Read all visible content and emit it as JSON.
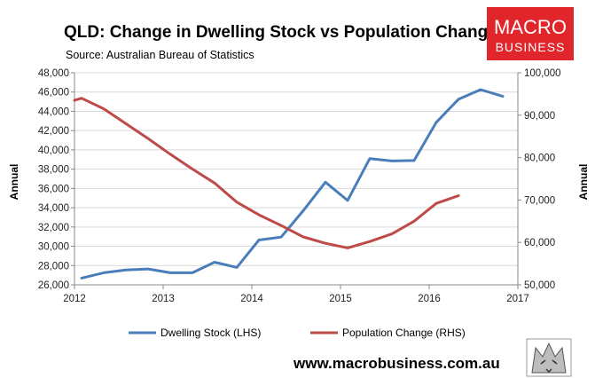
{
  "chart_data": {
    "type": "line",
    "title": "QLD: Change in Dwelling Stock vs Population Change",
    "subtitle": "Source: Australian Bureau of Statistics",
    "ylabel_left": "Annual",
    "ylabel_right": "Annual",
    "x_ticks": [
      2012,
      2013,
      2014,
      2015,
      2016,
      2017
    ],
    "xlim": [
      2012,
      2017
    ],
    "ylim_left": [
      26000,
      48000
    ],
    "ylim_right": [
      50000,
      100000
    ],
    "y_ticks_left": [
      "26,000",
      "28,000",
      "30,000",
      "32,000",
      "34,000",
      "36,000",
      "38,000",
      "40,000",
      "42,000",
      "44,000",
      "46,000",
      "48,000"
    ],
    "y_ticks_right": [
      "50,000",
      "60,000",
      "70,000",
      "80,000",
      "90,000",
      "100,000"
    ],
    "legend_position": "bottom",
    "grid": "horizontal",
    "series": [
      {
        "name": "Dwelling Stock (LHS)",
        "axis": "left",
        "color": "#4a7ebb",
        "x": [
          2012.08,
          2012.33,
          2012.58,
          2012.83,
          2013.08,
          2013.33,
          2013.58,
          2013.83,
          2014.08,
          2014.33,
          2014.58,
          2014.83,
          2015.08,
          2015.33,
          2015.58,
          2015.83,
          2016.08,
          2016.33,
          2016.58,
          2016.83
        ],
        "y": [
          26700,
          27250,
          27550,
          27650,
          27250,
          27250,
          28350,
          27800,
          30650,
          30950,
          33700,
          36650,
          34750,
          39100,
          38850,
          38900,
          42850,
          45250,
          46250,
          45550
        ]
      },
      {
        "name": "Population Change (RHS)",
        "axis": "right",
        "color": "#be4b48",
        "x": [
          2012.0,
          2012.08,
          2012.33,
          2012.58,
          2012.83,
          2013.08,
          2013.33,
          2013.58,
          2013.83,
          2014.08,
          2014.33,
          2014.58,
          2014.83,
          2015.08,
          2015.33,
          2015.58,
          2015.83,
          2016.08,
          2016.33
        ],
        "y": [
          93500,
          94000,
          91500,
          88000,
          84500,
          80800,
          77300,
          74000,
          69500,
          66500,
          64000,
          61300,
          59800,
          58700,
          60200,
          62000,
          65000,
          69200,
          71000
        ]
      }
    ]
  },
  "branding": {
    "logo_line1": "MACRO",
    "logo_line2": "BUSINESS",
    "logo_bg": "#e0252b",
    "url": "www.macrobusiness.com.au"
  }
}
